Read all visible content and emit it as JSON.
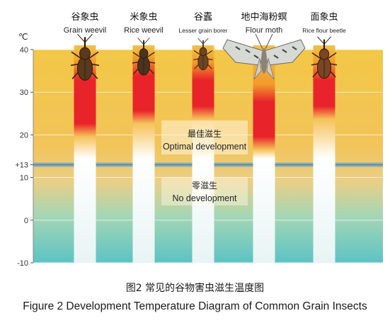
{
  "chart_data": {
    "type": "bar",
    "title": "",
    "xlabel": "",
    "ylabel": "℃",
    "ylim": [
      -10,
      40
    ],
    "y_ticks": [
      "40",
      "30",
      "20",
      "+13",
      "10",
      "0",
      "-10"
    ],
    "marker_line": 13,
    "grid": true,
    "categories": [
      {
        "cn": "谷象虫",
        "en": "Grain weevil",
        "icon": "grain-weevil-icon"
      },
      {
        "cn": "米象虫",
        "en": "Rice weevil",
        "icon": "rice-weevil-icon"
      },
      {
        "cn": "谷蠹",
        "en": "Lesser grain borer",
        "icon": "lesser-grain-borer-icon"
      },
      {
        "cn": "地中海粉螟",
        "en": "Flour moth",
        "icon": "flour-moth-icon"
      },
      {
        "cn": "面象虫",
        "en": "Rice flour beetle",
        "icon": "rice-flour-beetle-icon"
      }
    ],
    "series": [
      {
        "name": "Optimal development",
        "values": [
          [
            22,
            32
          ],
          [
            25,
            33
          ],
          [
            26,
            32
          ],
          [
            19,
            27
          ],
          [
            26,
            32
          ]
        ]
      },
      {
        "name": "No development",
        "values": [
          [
            -10,
            13
          ],
          [
            -10,
            13
          ],
          [
            -10,
            13
          ],
          [
            -10,
            13
          ],
          [
            -10,
            13
          ]
        ]
      }
    ],
    "annotations": [
      {
        "cn": "最佳滋生",
        "en": "Optimal development"
      },
      {
        "cn": "零滋生",
        "en": "No development"
      }
    ]
  },
  "caption": {
    "cn": "图2 常见的谷物害虫滋生温度图",
    "en": "Figure 2 Development Temperature Diagram of Common Grain Insects"
  },
  "colors": {
    "optimal": "#e8242a",
    "mid": "#f39a2a",
    "warm_bg": "#f1c24e",
    "cool_bg": "#6cc6c6",
    "marker": "#6fa6c6"
  }
}
